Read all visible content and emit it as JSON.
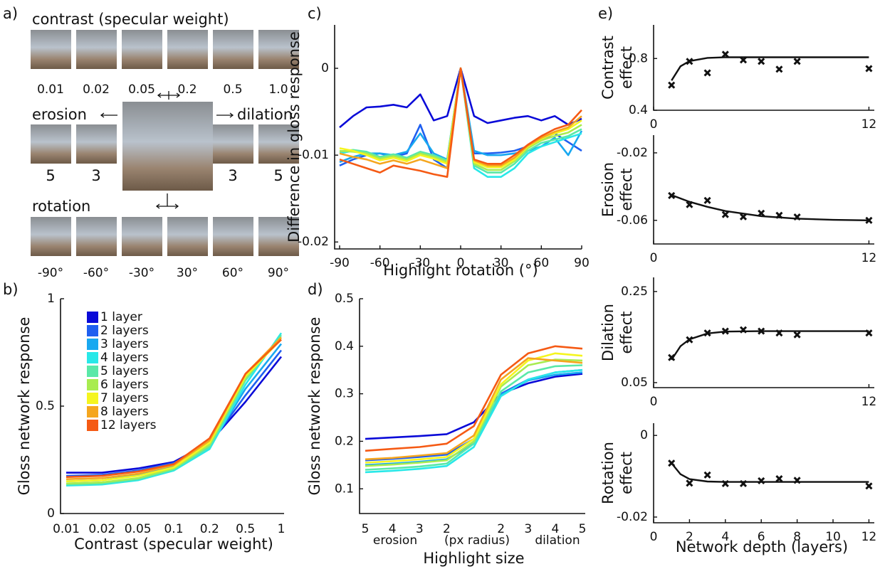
{
  "panel_a": {
    "label": "a)",
    "contrast": {
      "title": "contrast (specular weight)",
      "labels": [
        "0.01",
        "0.02",
        "0.05",
        "0.2",
        "0.5",
        "1.0"
      ]
    },
    "size": {
      "erosion": "erosion",
      "dilation": "dilation",
      "erosion_labels": [
        "5",
        "3"
      ],
      "dilation_labels": [
        "3",
        "5"
      ]
    },
    "rotation": {
      "title": "rotation",
      "labels": [
        "-90°",
        "-60°",
        "-30°",
        "30°",
        "60°",
        "90°"
      ]
    }
  },
  "chart_data": [
    {
      "type": "line",
      "label": "b)",
      "xlabel": "Contrast (specular weight)",
      "ylabel": "Gloss network response",
      "categories": [
        "0.01",
        "0.02",
        "0.05",
        "0.1",
        "0.2",
        "0.5",
        "1"
      ],
      "ylim": [
        0,
        1
      ],
      "yticks": [
        0,
        0.5,
        1
      ],
      "legend": "upper left",
      "series": [
        {
          "name": "1 layer",
          "color": "#0a0ad8",
          "values": [
            0.19,
            0.19,
            0.21,
            0.24,
            0.33,
            0.52,
            0.73
          ]
        },
        {
          "name": "2 layers",
          "color": "#1f5ff0",
          "values": [
            0.175,
            0.18,
            0.2,
            0.235,
            0.32,
            0.55,
            0.76
          ]
        },
        {
          "name": "3 layers",
          "color": "#19a8f0",
          "values": [
            0.15,
            0.155,
            0.18,
            0.22,
            0.31,
            0.58,
            0.79
          ]
        },
        {
          "name": "4 layers",
          "color": "#28e8e8",
          "values": [
            0.13,
            0.135,
            0.155,
            0.2,
            0.3,
            0.6,
            0.84
          ]
        },
        {
          "name": "5 layers",
          "color": "#5ae8a8",
          "values": [
            0.135,
            0.14,
            0.16,
            0.205,
            0.31,
            0.62,
            0.83
          ]
        },
        {
          "name": "6 layers",
          "color": "#a8ec50",
          "values": [
            0.14,
            0.145,
            0.165,
            0.21,
            0.32,
            0.63,
            0.82
          ]
        },
        {
          "name": "7 layers",
          "color": "#f5f51e",
          "values": [
            0.15,
            0.155,
            0.175,
            0.215,
            0.33,
            0.64,
            0.81
          ]
        },
        {
          "name": "8 layers",
          "color": "#f5a61e",
          "values": [
            0.16,
            0.165,
            0.185,
            0.225,
            0.34,
            0.65,
            0.82
          ]
        },
        {
          "name": "12 layers",
          "color": "#f55a14",
          "values": [
            0.17,
            0.175,
            0.195,
            0.23,
            0.35,
            0.65,
            0.81
          ]
        }
      ]
    },
    {
      "type": "line",
      "label": "c)",
      "xlabel": "Highlight rotation (°)",
      "ylabel": "Difference in gloss response",
      "x": [
        -90,
        -80,
        -70,
        -60,
        -50,
        -40,
        -30,
        -20,
        -10,
        0,
        10,
        20,
        30,
        40,
        50,
        60,
        70,
        80,
        90
      ],
      "xlim": [
        -90,
        90
      ],
      "xticks": [
        -90,
        -60,
        -30,
        0,
        30,
        60,
        90
      ],
      "ylim": [
        -0.0208,
        0.005
      ],
      "yticks": [
        0,
        -0.01,
        -0.02
      ],
      "series": [
        {
          "color": "#0a0ad8",
          "values": [
            -0.0068,
            -0.0055,
            -0.0045,
            -0.0044,
            -0.0042,
            -0.0045,
            -0.003,
            -0.006,
            -0.0055,
            0,
            -0.0055,
            -0.0063,
            -0.006,
            -0.0057,
            -0.0055,
            -0.006,
            -0.0055,
            -0.0065,
            -0.0058
          ]
        },
        {
          "color": "#1f5ff0",
          "values": [
            -0.0112,
            -0.0105,
            -0.01,
            -0.0098,
            -0.0102,
            -0.0098,
            -0.0065,
            -0.0105,
            -0.0115,
            0,
            -0.0098,
            -0.0098,
            -0.0097,
            -0.0095,
            -0.009,
            -0.0082,
            -0.0075,
            -0.0085,
            -0.0095
          ]
        },
        {
          "color": "#19a8f0",
          "values": [
            -0.0108,
            -0.0102,
            -0.0098,
            -0.0098,
            -0.01,
            -0.0096,
            -0.0075,
            -0.0098,
            -0.0105,
            0,
            -0.0095,
            -0.01,
            -0.01,
            -0.0098,
            -0.0095,
            -0.009,
            -0.008,
            -0.01,
            -0.0072
          ]
        },
        {
          "color": "#28e8e8",
          "values": [
            -0.0098,
            -0.0095,
            -0.0098,
            -0.0102,
            -0.01,
            -0.0105,
            -0.0098,
            -0.0102,
            -0.0108,
            0,
            -0.0115,
            -0.0125,
            -0.0125,
            -0.0115,
            -0.0098,
            -0.009,
            -0.0085,
            -0.008,
            -0.0075
          ]
        },
        {
          "color": "#5ae8a8",
          "values": [
            -0.0096,
            -0.0094,
            -0.0096,
            -0.0102,
            -0.0099,
            -0.0103,
            -0.0096,
            -0.01,
            -0.0106,
            0,
            -0.0112,
            -0.012,
            -0.012,
            -0.011,
            -0.0095,
            -0.0086,
            -0.0082,
            -0.0078,
            -0.007
          ]
        },
        {
          "color": "#a8ec50",
          "values": [
            -0.0095,
            -0.0096,
            -0.0098,
            -0.0104,
            -0.0101,
            -0.0105,
            -0.0098,
            -0.0102,
            -0.0108,
            0,
            -0.011,
            -0.0117,
            -0.0117,
            -0.0107,
            -0.0092,
            -0.0083,
            -0.0078,
            -0.0074,
            -0.0065
          ]
        },
        {
          "color": "#f5f51e",
          "values": [
            -0.0092,
            -0.0095,
            -0.01,
            -0.0106,
            -0.0103,
            -0.0107,
            -0.01,
            -0.0104,
            -0.011,
            0,
            -0.0108,
            -0.0114,
            -0.0114,
            -0.0105,
            -0.009,
            -0.0081,
            -0.0075,
            -0.007,
            -0.006
          ]
        },
        {
          "color": "#f5a61e",
          "values": [
            -0.0098,
            -0.0102,
            -0.0105,
            -0.011,
            -0.0106,
            -0.011,
            -0.0105,
            -0.011,
            -0.0115,
            0,
            -0.0106,
            -0.0112,
            -0.0112,
            -0.0103,
            -0.0089,
            -0.008,
            -0.0073,
            -0.0068,
            -0.0055
          ]
        },
        {
          "color": "#f55a14",
          "values": [
            -0.0105,
            -0.011,
            -0.0115,
            -0.012,
            -0.0112,
            -0.0115,
            -0.0118,
            -0.0122,
            -0.0125,
            0,
            -0.0105,
            -0.011,
            -0.011,
            -0.01,
            -0.0088,
            -0.0078,
            -0.007,
            -0.0065,
            -0.0048
          ]
        }
      ]
    },
    {
      "type": "line",
      "label": "d)",
      "xlabel": "Highlight size",
      "ylabel": "Gloss network response",
      "annotations": [
        "erosion",
        "(px radius)",
        "dilation"
      ],
      "categories": [
        "5",
        "4",
        "3",
        "2",
        null,
        "2",
        "3",
        "4",
        "5"
      ],
      "ylim": [
        0.048,
        0.5
      ],
      "yticks": [
        0.1,
        0.2,
        0.3,
        0.4,
        0.5
      ],
      "series": [
        {
          "color": "#0a0ad8",
          "values": [
            0.205,
            0.208,
            0.211,
            0.215,
            0.24,
            0.3,
            0.322,
            0.336,
            0.342
          ]
        },
        {
          "color": "#1f5ff0",
          "values": [
            0.16,
            0.163,
            0.167,
            0.172,
            0.205,
            0.3,
            0.33,
            0.345,
            0.35
          ]
        },
        {
          "color": "#19a8f0",
          "values": [
            0.15,
            0.153,
            0.157,
            0.162,
            0.195,
            0.298,
            0.328,
            0.34,
            0.345
          ]
        },
        {
          "color": "#28e8e8",
          "values": [
            0.135,
            0.138,
            0.142,
            0.148,
            0.188,
            0.295,
            0.33,
            0.345,
            0.35
          ]
        },
        {
          "color": "#5ae8a8",
          "values": [
            0.14,
            0.143,
            0.147,
            0.153,
            0.195,
            0.305,
            0.345,
            0.358,
            0.36
          ]
        },
        {
          "color": "#a8ec50",
          "values": [
            0.148,
            0.151,
            0.155,
            0.16,
            0.2,
            0.315,
            0.36,
            0.372,
            0.37
          ]
        },
        {
          "color": "#f5f51e",
          "values": [
            0.155,
            0.158,
            0.162,
            0.167,
            0.205,
            0.32,
            0.37,
            0.385,
            0.38
          ]
        },
        {
          "color": "#f5a61e",
          "values": [
            0.162,
            0.165,
            0.17,
            0.175,
            0.212,
            0.33,
            0.375,
            0.37,
            0.365
          ]
        },
        {
          "color": "#f55a14",
          "values": [
            0.18,
            0.184,
            0.188,
            0.195,
            0.232,
            0.34,
            0.385,
            0.4,
            0.395
          ]
        }
      ]
    },
    {
      "type": "scatter",
      "label": "e)",
      "ylabel": [
        "Contrast",
        "effect"
      ],
      "color": "#111111",
      "x": [
        1,
        2,
        3,
        4,
        5,
        6,
        7,
        8,
        12
      ],
      "values": [
        0.594,
        0.778,
        0.689,
        0.833,
        0.789,
        0.778,
        0.717,
        0.778,
        0.722
      ],
      "fit_x": [
        1,
        1.5,
        2,
        3,
        4,
        6,
        8,
        10,
        12
      ],
      "fit_values": [
        0.63,
        0.74,
        0.78,
        0.805,
        0.81,
        0.81,
        0.81,
        0.81,
        0.81
      ],
      "xlim": [
        0,
        12.3
      ],
      "xticks": [
        0,
        12
      ],
      "ylim": [
        0.4,
        1.06
      ],
      "yticks": [
        0.4,
        0.8
      ]
    },
    {
      "type": "scatter",
      "ylabel": [
        "Erosion",
        "effect"
      ],
      "color": "#111111",
      "x": [
        1,
        2,
        3,
        4,
        5,
        6,
        7,
        8,
        12
      ],
      "values": [
        -0.0453,
        -0.0507,
        -0.0482,
        -0.0566,
        -0.0579,
        -0.0558,
        -0.057,
        -0.058,
        -0.06
      ],
      "fit_x": [
        1,
        2,
        3,
        4,
        6,
        8,
        10,
        12
      ],
      "fit_values": [
        -0.045,
        -0.049,
        -0.052,
        -0.0545,
        -0.0575,
        -0.059,
        -0.0597,
        -0.06
      ],
      "xlim": [
        0,
        12.3
      ],
      "xticks": [
        0,
        12
      ],
      "ylim": [
        -0.074,
        -0.0095
      ],
      "yticks": [
        -0.02,
        -0.06
      ]
    },
    {
      "type": "scatter",
      "ylabel": [
        "Dilation",
        "effect"
      ],
      "color": "#111111",
      "x": [
        1,
        2,
        3,
        4,
        5,
        6,
        7,
        8,
        12
      ],
      "values": [
        0.105,
        0.144,
        0.159,
        0.163,
        0.166,
        0.163,
        0.159,
        0.155,
        0.159
      ],
      "fit_x": [
        1,
        1.5,
        2,
        3,
        4,
        6,
        8,
        10,
        12
      ],
      "fit_values": [
        0.1,
        0.13,
        0.145,
        0.158,
        0.162,
        0.163,
        0.163,
        0.163,
        0.163
      ],
      "xlim": [
        0,
        12.3
      ],
      "xticks": [
        0,
        12
      ],
      "ylim": [
        0.039,
        0.281
      ],
      "yticks": [
        0.05,
        0.25
      ]
    },
    {
      "type": "scatter",
      "ylabel": [
        "Rotation",
        "effect"
      ],
      "xlabel": "Network depth (layers)",
      "color": "#111111",
      "x": [
        1,
        2,
        3,
        4,
        5,
        6,
        7,
        8,
        12
      ],
      "values": [
        -0.0068,
        -0.0117,
        -0.0097,
        -0.0118,
        -0.0118,
        -0.0111,
        -0.0106,
        -0.011,
        -0.0124
      ],
      "fit_x": [
        1,
        1.5,
        2,
        3,
        4,
        6,
        8,
        10,
        12
      ],
      "fit_values": [
        -0.0068,
        -0.0095,
        -0.0107,
        -0.0113,
        -0.0114,
        -0.0114,
        -0.0114,
        -0.0114,
        -0.0114
      ],
      "xlim": [
        0,
        12.3
      ],
      "xticks": [
        0,
        2,
        4,
        6,
        8,
        10,
        12
      ],
      "ylim": [
        -0.0214,
        0.003
      ],
      "yticks": [
        0,
        -0.02
      ]
    }
  ]
}
